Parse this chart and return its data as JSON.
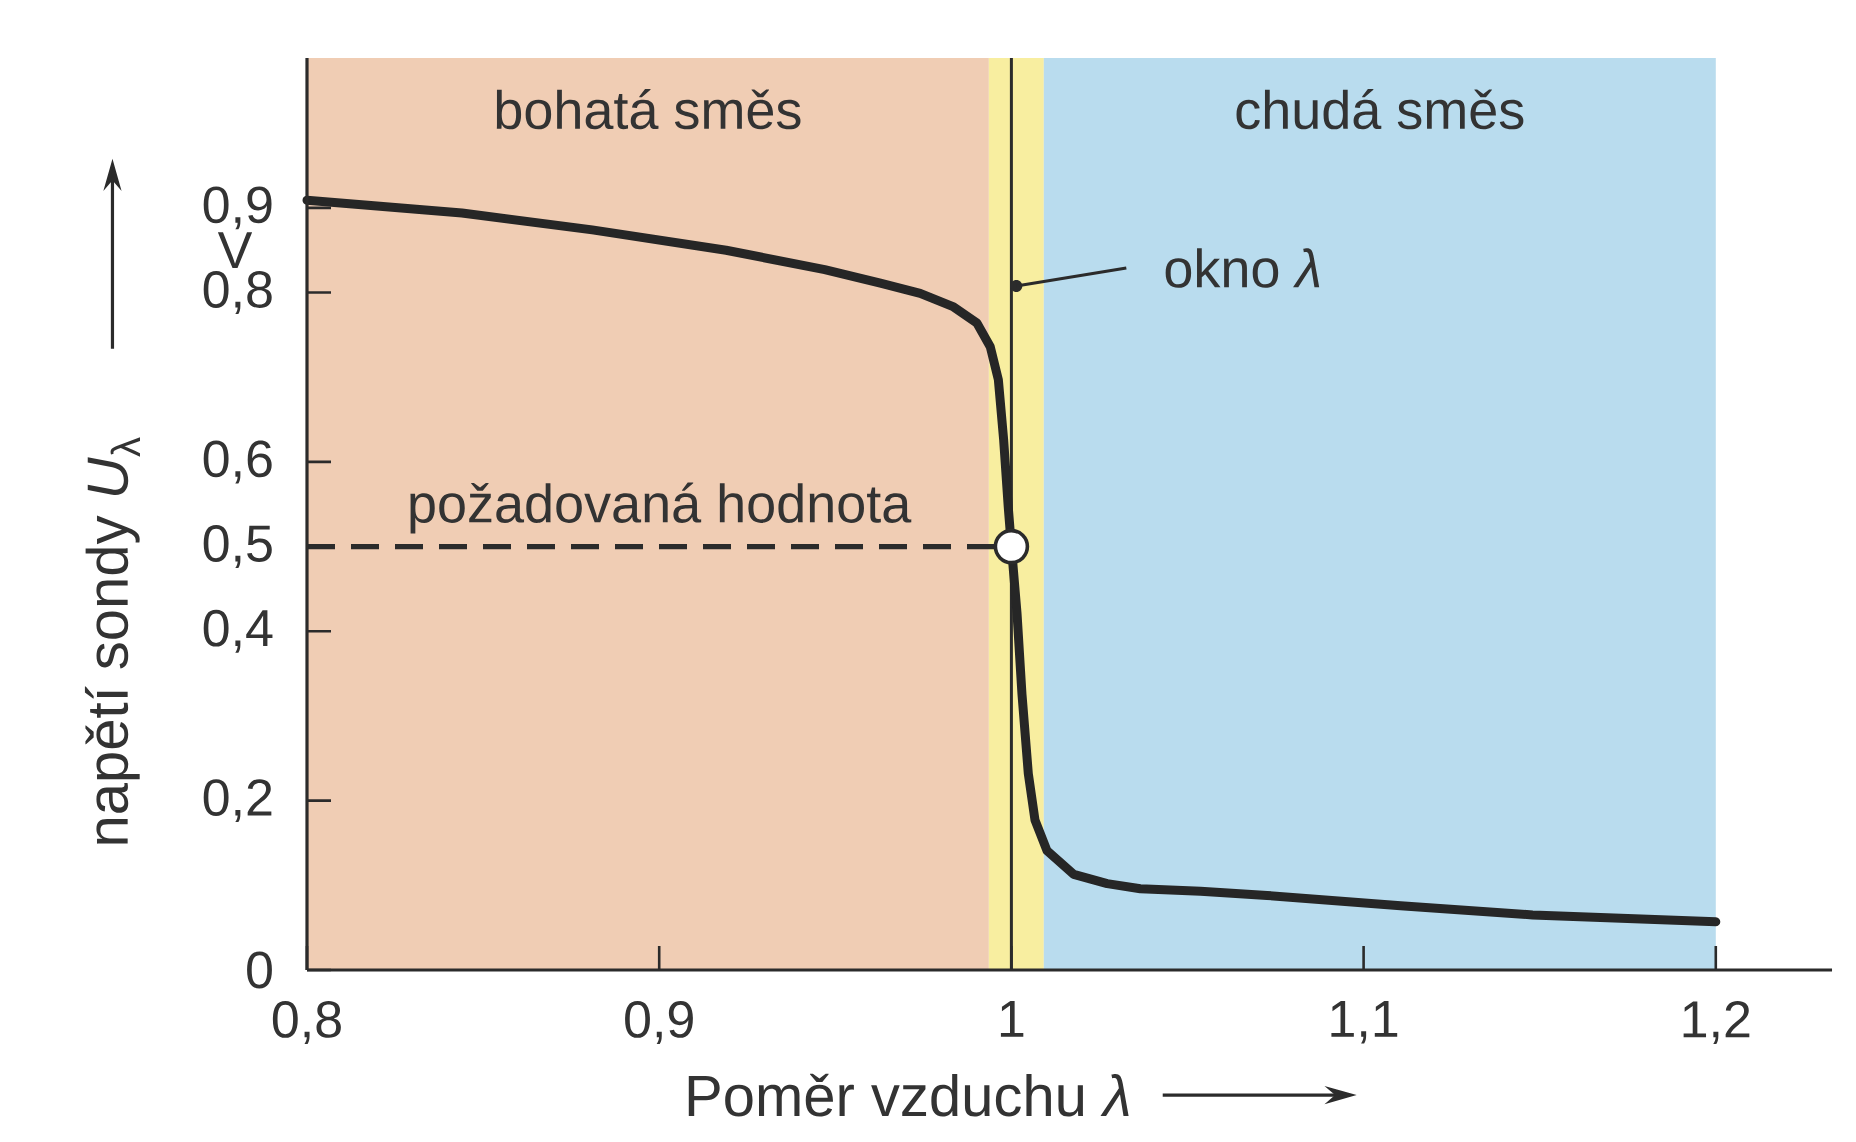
{
  "chart_data": {
    "type": "line",
    "xlabel": "Poměr vzduchu *λ*",
    "ylabel": "napětí sondy *U*$_{λ}$",
    "annotations": [
      "V"
    ],
    "xlim": [
      0.8,
      1.233
    ],
    "ylim": [
      0,
      1.077
    ],
    "xticks": [
      {
        "value": 0.8,
        "label": "0,8"
      },
      {
        "value": 0.9,
        "label": "0,9"
      },
      1,
      {
        "value": 1.1,
        "label": "1,1"
      },
      {
        "value": 1.2,
        "label": "1,2"
      }
    ],
    "yticks": [
      0,
      {
        "value": 0.2,
        "label": "0,2"
      },
      {
        "value": 0.4,
        "label": "0,4"
      },
      {
        "value": 0.5,
        "label": "0,5"
      },
      {
        "value": 0.6,
        "label": "0,6"
      },
      {
        "value": 0.8,
        "label": "0,8"
      },
      {
        "value": 0.9,
        "label": "0,9"
      }
    ],
    "bands": [
      {
        "axis": "x",
        "from": 0.8,
        "to": 0.9936,
        "label": "bohatá směs",
        "color": "#f0cdb4"
      },
      {
        "axis": "x",
        "from": 0.9936,
        "to": 1.0092,
        "label": "okno *λ*",
        "color": "#f8eea0"
      },
      {
        "axis": "x",
        "from": 1.0092,
        "to": 1.2,
        "label": "chudá směs",
        "color": "#b9dcee"
      }
    ],
    "ref_lines": [
      {
        "axis": "y",
        "value": 0.5,
        "label": "požadovaná hodnota",
        "line_style": "dashed",
        "color": "#2b2b2b"
      },
      {
        "axis": "x",
        "value": 1,
        "color": "#2b2b2b"
      }
    ],
    "series": [
      {
        "color": "#262626",
        "x": [
          0.8,
          0.844,
          0.881,
          0.919,
          0.947,
          0.9628,
          0.9741,
          0.9836,
          0.9902,
          0.994,
          0.9963,
          0.9978,
          0.9991,
          1.0,
          1.0016,
          1.003,
          1.0048,
          1.0067,
          1.0101,
          1.0177,
          1.0272,
          1.0366,
          1.0537,
          1.0726,
          1.1105,
          1.148,
          1.2
        ],
        "values": [
          0.909,
          0.894,
          0.874,
          0.85,
          0.827,
          0.811,
          0.799,
          0.783,
          0.764,
          0.736,
          0.697,
          0.626,
          0.547,
          0.5,
          0.421,
          0.326,
          0.232,
          0.177,
          0.141,
          0.113,
          0.102,
          0.096,
          0.093,
          0.088,
          0.076,
          0.065,
          0.057
        ]
      },
      {
        "type": "scatter",
        "color": "#ffffff",
        "marker": "circle",
        "x": [
          1
        ],
        "values": [
          0.5
        ]
      }
    ]
  }
}
